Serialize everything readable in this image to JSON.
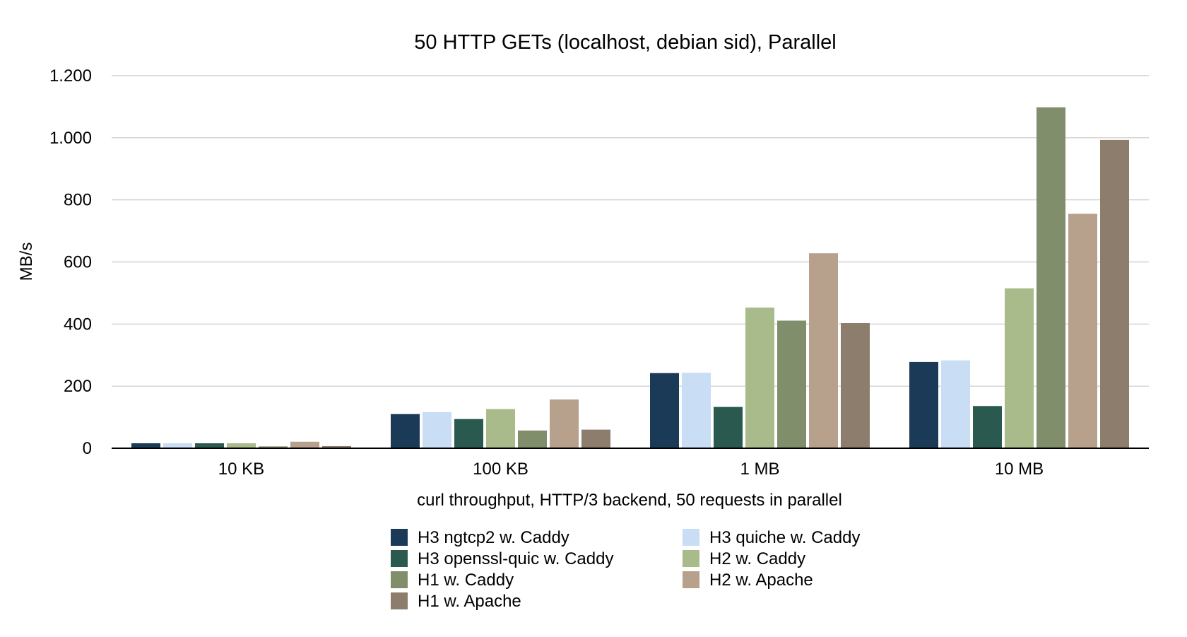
{
  "chart_data": {
    "type": "bar",
    "title": "50 HTTP GETs (localhost, debian sid), Parallel",
    "xlabel": "curl throughput, HTTP/3 backend, 50 requests in parallel",
    "ylabel": "MB/s",
    "ylim": [
      0,
      1200
    ],
    "yticks": [
      0,
      200,
      400,
      600,
      800,
      1000,
      1200
    ],
    "ytick_labels": [
      "0",
      "200",
      "400",
      "600",
      "800",
      "1.000",
      "1.200"
    ],
    "grid": true,
    "legend_position": "bottom",
    "categories": [
      "10 KB",
      "100 KB",
      "1 MB",
      "10 MB"
    ],
    "series": [
      {
        "name": "H3 ngtcp2 w. Caddy",
        "color": "#1b3a57",
        "values": [
          16,
          110,
          242,
          278
        ]
      },
      {
        "name": "H3 quiche w. Caddy",
        "color": "#c9ddf4",
        "values": [
          16,
          116,
          243,
          283
        ]
      },
      {
        "name": "H3 openssl-quic w. Caddy",
        "color": "#2a5a4f",
        "values": [
          16,
          94,
          133,
          136
        ]
      },
      {
        "name": "H2 w. Caddy",
        "color": "#a9bb8a",
        "values": [
          16,
          126,
          453,
          515
        ]
      },
      {
        "name": "H1 w. Caddy",
        "color": "#818e6b",
        "values": [
          6,
          57,
          411,
          1098
        ]
      },
      {
        "name": "H2 w. Apache",
        "color": "#b7a08c",
        "values": [
          21,
          157,
          628,
          755
        ]
      },
      {
        "name": "H1 w. Apache",
        "color": "#8d7d6d",
        "values": [
          7,
          60,
          403,
          993
        ]
      }
    ]
  }
}
